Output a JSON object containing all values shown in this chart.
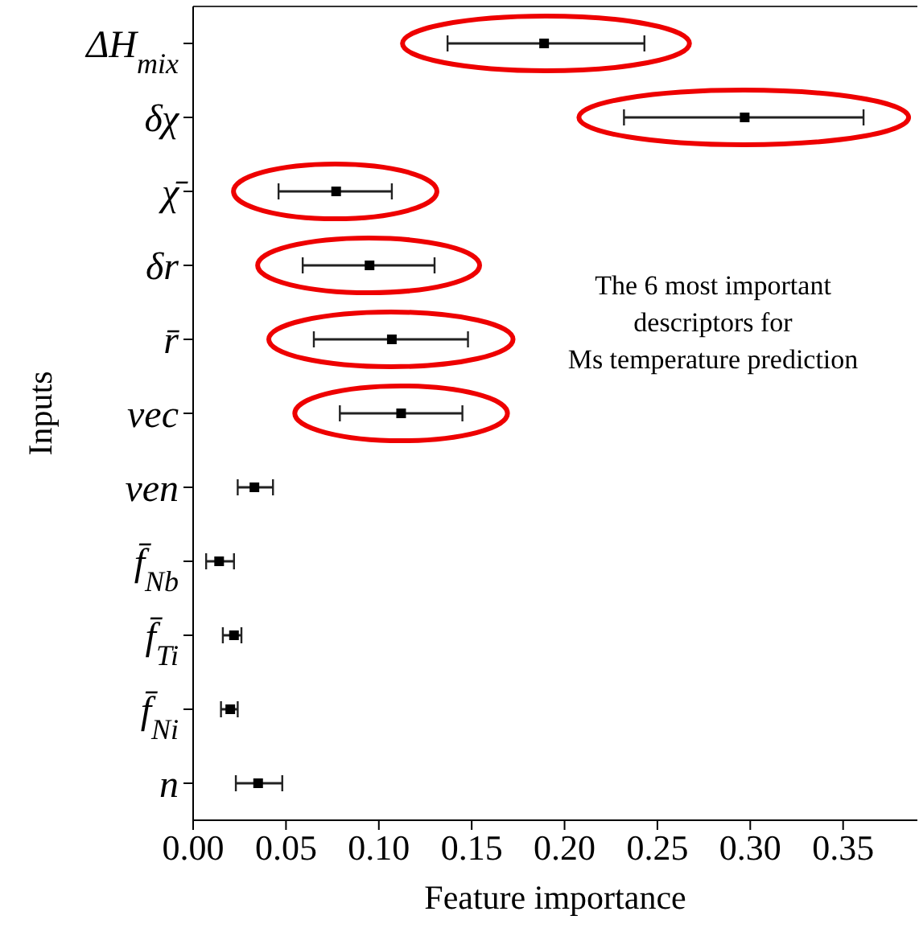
{
  "chart_data": {
    "type": "scatter",
    "orientation": "horizontal",
    "xlabel": "Feature importance",
    "ylabel": "Inputs",
    "categories": [
      "ΔH$_{mix}$",
      "δχ",
      "χ̄",
      "δr",
      "r̄",
      "vec",
      "ven",
      "f̄$_{Nb}$",
      "f̄$_{Ti}$",
      "f̄$_{Ni}$",
      "n"
    ],
    "values": [
      0.189,
      0.297,
      0.077,
      0.095,
      0.107,
      0.112,
      0.033,
      0.014,
      0.022,
      0.02,
      0.035
    ],
    "errors": [
      [
        0.137,
        0.243
      ],
      [
        0.232,
        0.361
      ],
      [
        0.046,
        0.107
      ],
      [
        0.059,
        0.13
      ],
      [
        0.065,
        0.148
      ],
      [
        0.079,
        0.145
      ],
      [
        0.024,
        0.043
      ],
      [
        0.007,
        0.022
      ],
      [
        0.016,
        0.026
      ],
      [
        0.015,
        0.024
      ],
      [
        0.023,
        0.048
      ]
    ],
    "color": "#000000",
    "marker": "square",
    "xlim": [
      0,
      0.39
    ],
    "xticks": [
      {
        "value": 0,
        "label": "0.00"
      },
      {
        "value": 0.05,
        "label": "0.05"
      },
      {
        "value": 0.1,
        "label": "0.10"
      },
      {
        "value": 0.15,
        "label": "0.15"
      },
      {
        "value": 0.2,
        "label": "0.20"
      },
      {
        "value": 0.25,
        "label": "0.25"
      },
      {
        "value": 0.3,
        "label": "0.30"
      },
      {
        "value": 0.35,
        "label": "0.35"
      }
    ],
    "annotations": [
      "The 6 most important\ndescriptors for\nMs temperature prediction"
    ],
    "grid": false
  }
}
